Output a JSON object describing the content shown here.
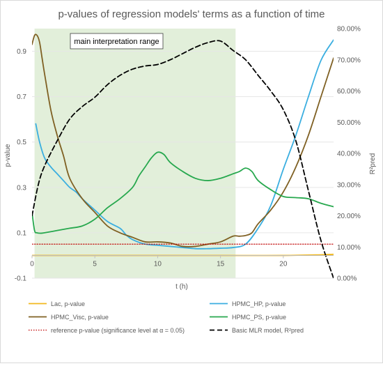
{
  "chart_data": {
    "type": "line",
    "title": "p-values of regression models' terms as a function of time",
    "xlabel": "t (h)",
    "ylabel": "p-value",
    "y2label": "R²pred",
    "xlim": [
      0,
      24
    ],
    "ylim": [
      -0.1,
      1.0
    ],
    "y2lim": [
      0,
      80
    ],
    "x_ticks": [
      "0",
      "5",
      "10",
      "15",
      "20"
    ],
    "x_tick_values": [
      0,
      5,
      10,
      15,
      20
    ],
    "y_ticks": [
      "-0.1",
      "0.1",
      "0.3",
      "0.5",
      "0.7",
      "0.9"
    ],
    "y_tick_values": [
      -0.1,
      0.1,
      0.3,
      0.5,
      0.7,
      0.9
    ],
    "y2_ticks": [
      "0.00%",
      "10.00%",
      "20.00%",
      "30.00%",
      "40.00%",
      "50.00%",
      "60.00%",
      "70.00%",
      "80.00%"
    ],
    "y2_tick_values": [
      0,
      10,
      20,
      30,
      40,
      50,
      60,
      70,
      80
    ],
    "grid": true,
    "legend_position": "bottom",
    "annotation": {
      "label": "main interpretation range",
      "x_range": [
        0.2,
        16.2
      ],
      "fill": "#e2efda"
    },
    "series": [
      {
        "name": "Lac, p-value",
        "axis": "left",
        "color": "#f2b91e",
        "dash": "solid",
        "x": [
          0,
          5,
          10,
          15,
          20,
          23,
          24
        ],
        "y": [
          0.0,
          0.0,
          0.0,
          0.0,
          0.0,
          0.003,
          0.005
        ]
      },
      {
        "name": "HPMC_HP, p-value",
        "axis": "left",
        "color": "#3aaee0",
        "dash": "solid",
        "x": [
          0.3,
          0.6,
          1,
          1.5,
          2,
          2.5,
          3,
          3.5,
          4,
          5,
          6,
          7,
          7.5,
          8,
          9,
          10,
          11,
          12,
          13,
          14,
          15,
          16,
          17,
          18,
          19,
          20,
          21,
          22,
          23,
          24
        ],
        "y": [
          0.58,
          0.5,
          0.43,
          0.39,
          0.36,
          0.33,
          0.3,
          0.28,
          0.25,
          0.2,
          0.15,
          0.12,
          0.09,
          0.07,
          0.05,
          0.045,
          0.04,
          0.035,
          0.03,
          0.03,
          0.032,
          0.035,
          0.05,
          0.12,
          0.22,
          0.38,
          0.53,
          0.7,
          0.86,
          0.95
        ]
      },
      {
        "name": "HPMC_Visc, p-value",
        "axis": "left",
        "color": "#7f6023",
        "dash": "solid",
        "x": [
          0,
          0.2,
          0.4,
          0.6,
          0.8,
          1,
          1.5,
          2,
          2.5,
          3,
          4,
          5,
          6,
          7,
          8,
          9,
          10,
          11,
          12,
          13,
          14,
          15,
          16,
          16.5,
          17,
          17.5,
          18,
          19,
          20,
          21,
          22,
          23,
          24
        ],
        "y": [
          0.93,
          0.97,
          0.97,
          0.94,
          0.87,
          0.8,
          0.64,
          0.53,
          0.44,
          0.34,
          0.25,
          0.19,
          0.13,
          0.1,
          0.08,
          0.06,
          0.06,
          0.055,
          0.04,
          0.04,
          0.05,
          0.06,
          0.085,
          0.085,
          0.088,
          0.1,
          0.14,
          0.2,
          0.28,
          0.39,
          0.53,
          0.7,
          0.87
        ]
      },
      {
        "name": "HPMC_PS, p-value",
        "axis": "left",
        "color": "#27a84e",
        "dash": "solid",
        "x": [
          0,
          0.2,
          0.4,
          0.7,
          1,
          2,
          3,
          4,
          5,
          6,
          7,
          8,
          8.5,
          9,
          9.5,
          10,
          10.5,
          11,
          12,
          13,
          14,
          15,
          16,
          16.5,
          17,
          17.5,
          18,
          19,
          20,
          21,
          22,
          23,
          24
        ],
        "y": [
          0.19,
          0.11,
          0.1,
          0.098,
          0.1,
          0.11,
          0.12,
          0.13,
          0.16,
          0.21,
          0.25,
          0.3,
          0.35,
          0.39,
          0.43,
          0.455,
          0.445,
          0.41,
          0.37,
          0.34,
          0.33,
          0.34,
          0.36,
          0.37,
          0.385,
          0.37,
          0.33,
          0.29,
          0.26,
          0.255,
          0.25,
          0.23,
          0.215
        ]
      },
      {
        "name": "reference p-value (significance level at α = 0.05)",
        "axis": "left",
        "color": "#c00000",
        "dash": "dotted",
        "x": [
          0,
          24
        ],
        "y": [
          0.05,
          0.05
        ]
      },
      {
        "name": "Basic MLR model, R²pred",
        "axis": "right",
        "color": "#000000",
        "dash": "dashed",
        "x": [
          0,
          0.5,
          1,
          2,
          3,
          4,
          5,
          6,
          7,
          8,
          9,
          10,
          11,
          12,
          13,
          14,
          15,
          16,
          17,
          18,
          19,
          20,
          21,
          22,
          23,
          24
        ],
        "y": [
          20,
          30,
          36,
          44,
          51,
          55,
          58,
          62,
          65,
          67,
          68,
          68.5,
          70,
          72,
          74,
          75.5,
          76,
          73,
          70,
          65,
          60,
          54,
          44,
          28,
          12,
          0
        ]
      }
    ]
  }
}
